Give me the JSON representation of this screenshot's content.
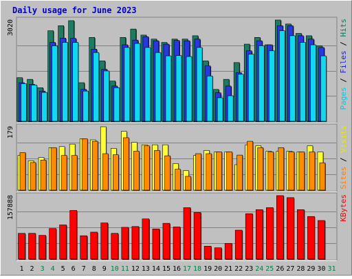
{
  "chart_data": {
    "type": "bar",
    "title": "Daily usage for June 2023",
    "days": [
      "1",
      "2",
      "3",
      "4",
      "5",
      "6",
      "7",
      "8",
      "9",
      "10",
      "11",
      "12",
      "13",
      "14",
      "15",
      "16",
      "17",
      "18",
      "19",
      "20",
      "21",
      "22",
      "23",
      "24",
      "25",
      "26",
      "27",
      "28",
      "29",
      "30",
      "31"
    ],
    "weekend_days": [
      "3",
      "4",
      "10",
      "11",
      "17",
      "18",
      "24",
      "25",
      "31"
    ],
    "panels": [
      {
        "id": "hits",
        "max_label": "3020",
        "ymax": 3020,
        "legend": [
          "Pages",
          "Files",
          "Hits"
        ],
        "legend_colors": [
          "#00c8e8",
          "#2020e0",
          "#008060"
        ],
        "series": [
          {
            "name": "Hits",
            "color": "#1e7a60",
            "values": [
              1300,
              1250,
              1000,
              2700,
              2850,
              3000,
              1150,
              2500,
              1800,
              1200,
              2500,
              2750,
              2570,
              2450,
              2350,
              2450,
              2450,
              2550,
              1800,
              950,
              1250,
              1750,
              2300,
              2500,
              2280,
              3020,
              2900,
              2620,
              2550,
              2250,
              0
            ]
          },
          {
            "name": "Files",
            "color": "#2838dc",
            "values": [
              1150,
              1100,
              900,
              2350,
              2480,
              2470,
              950,
              2150,
              1550,
              1050,
              2280,
              2420,
              2520,
              2400,
              2300,
              2410,
              2400,
              2450,
              1650,
              850,
              1050,
              1450,
              2100,
              2400,
              2280,
              2850,
              2850,
              2550,
              2450,
              2200,
              0
            ]
          },
          {
            "name": "Pages",
            "color": "#10d8f0",
            "values": [
              1120,
              1080,
              860,
              2250,
              2350,
              2350,
              900,
              2050,
              1500,
              1000,
              2200,
              2320,
              2200,
              2050,
              1950,
              1960,
              1930,
              2200,
              1350,
              700,
              760,
              1400,
              2000,
              2250,
              2100,
              2700,
              2550,
              2350,
              2280,
              1950,
              0
            ]
          }
        ]
      },
      {
        "id": "sites",
        "max_label": "179",
        "ymax": 179,
        "legend": [
          "Sites",
          "Visits"
        ],
        "legend_colors": [
          "#ff8000",
          "#e8e800"
        ],
        "series": [
          {
            "name": "Visits",
            "color": "#ffff33",
            "values": [
              98,
              83,
              92,
              120,
              123,
              130,
              145,
              142,
              179,
              118,
              166,
              135,
              128,
              128,
              128,
              75,
              55,
              98,
              112,
              108,
              108,
              72,
              128,
              125,
              110,
              110,
              110,
              108,
              125,
              108,
              0
            ]
          },
          {
            "name": "Sites",
            "color": "#ff8c00",
            "values": [
              106,
              78,
              85,
              120,
              98,
              98,
              145,
              138,
              103,
              100,
              148,
              110,
              125,
              112,
              97,
              59,
              39,
              103,
              103,
              108,
              108,
              99,
              138,
              120,
              108,
              120,
              108,
              108,
              108,
              77,
              0
            ]
          }
        ]
      },
      {
        "id": "kbytes",
        "max_label": "157888",
        "ymax": 157888,
        "legend": [
          "KBytes"
        ],
        "legend_colors": [
          "#ff0000"
        ],
        "series": [
          {
            "name": "KBytes",
            "color": "#ff0000",
            "values": [
              64000,
              64000,
              59000,
              76000,
              85000,
              121000,
              58000,
              67000,
              90000,
              64000,
              79000,
              81000,
              100000,
              75000,
              89000,
              80000,
              128000,
              116000,
              32000,
              28000,
              39000,
              72000,
              113000,
              123000,
              128000,
              158000,
              153000,
              123000,
              106000,
              96000,
              0
            ]
          }
        ]
      }
    ]
  },
  "colors": {
    "background": "#c0c0c0",
    "panel_bg": "#c0c0c0",
    "title_text": "#0000c0",
    "weekday_text": "#000000",
    "weekend_text": "#008040",
    "grid": "#808080"
  }
}
